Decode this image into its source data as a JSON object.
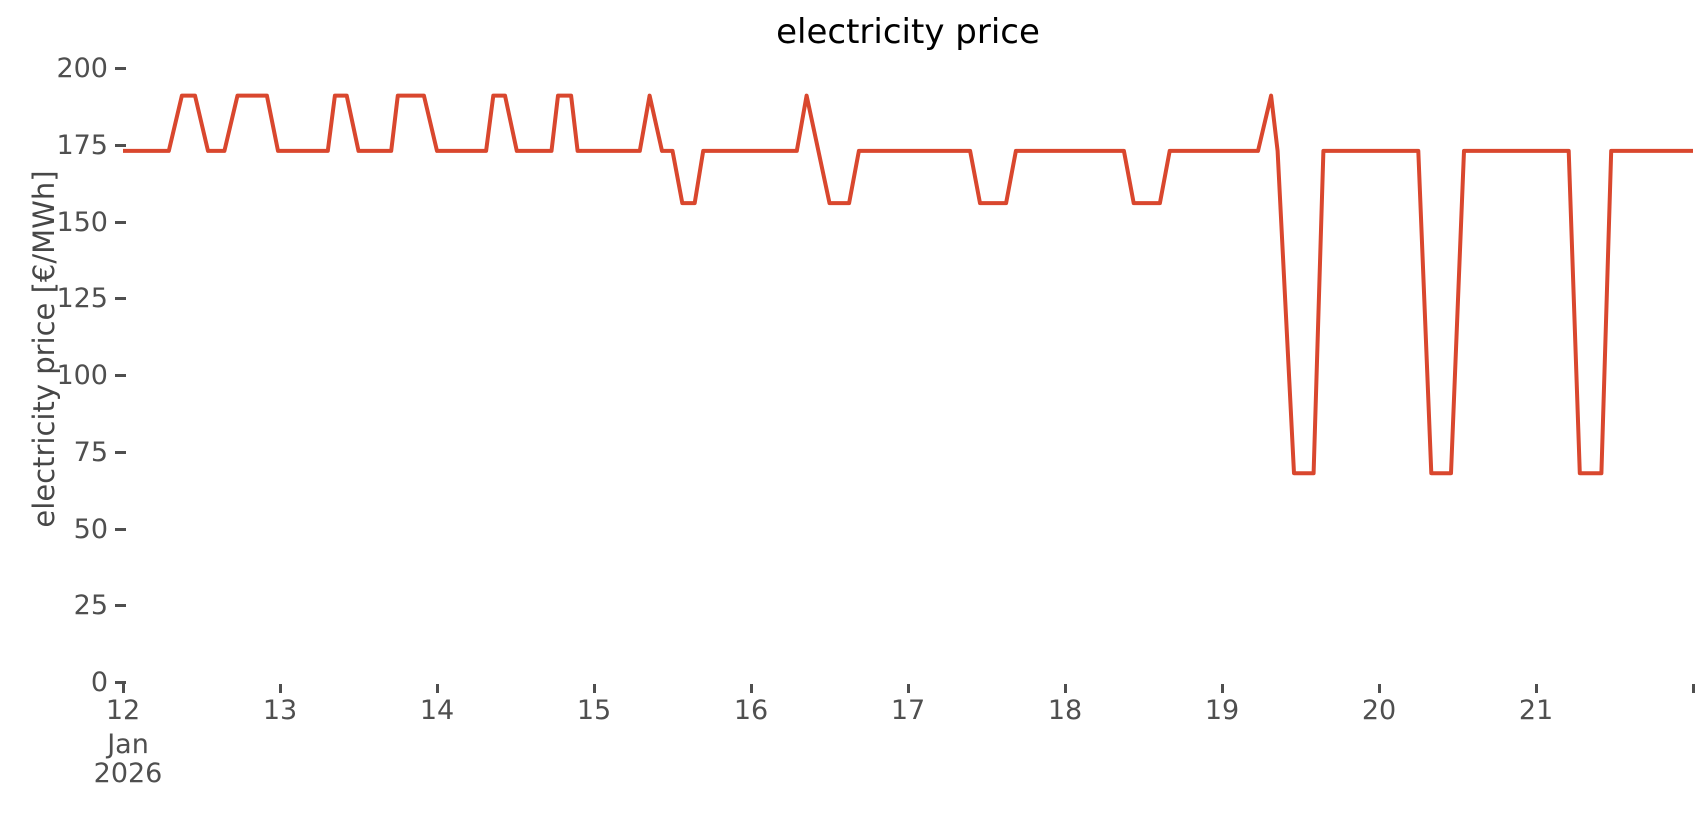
{
  "title": "electricity price",
  "y_axis": {
    "label": "electricity price [€/MWh]",
    "tick_labels": [
      "0",
      "25",
      "50",
      "75",
      "100",
      "125",
      "150",
      "175",
      "200"
    ],
    "tick_values": [
      0,
      25,
      50,
      75,
      100,
      125,
      150,
      175,
      200
    ]
  },
  "x_axis": {
    "ticks": [
      {
        "label": "12",
        "day_offset": 0,
        "sublabels": [
          "Jan",
          "2026"
        ]
      },
      {
        "label": "13",
        "day_offset": 1,
        "sublabels": []
      },
      {
        "label": "14",
        "day_offset": 2,
        "sublabels": []
      },
      {
        "label": "15",
        "day_offset": 3,
        "sublabels": []
      },
      {
        "label": "16",
        "day_offset": 4,
        "sublabels": []
      },
      {
        "label": "17",
        "day_offset": 5,
        "sublabels": []
      },
      {
        "label": "18",
        "day_offset": 6,
        "sublabels": []
      },
      {
        "label": "19",
        "day_offset": 7,
        "sublabels": []
      },
      {
        "label": "20",
        "day_offset": 8,
        "sublabels": []
      },
      {
        "label": "21",
        "day_offset": 9,
        "sublabels": []
      },
      {
        "label": "",
        "day_offset": 10,
        "sublabels": []
      }
    ]
  },
  "colors": {
    "line": "#d9472e",
    "tick_text": "#4f4f4f",
    "title_text": "#000000"
  },
  "chart_data": {
    "type": "line",
    "title": "electricity price",
    "xlabel": "",
    "ylabel": "electricity price [€/MWh]",
    "x_unit": "hours since 2026-01-12 00:00",
    "x_range_hours": [
      0,
      240
    ],
    "x_tick_days": [
      "2026-01-12",
      "2026-01-13",
      "2026-01-14",
      "2026-01-15",
      "2026-01-16",
      "2026-01-17",
      "2026-01-18",
      "2026-01-19",
      "2026-01-20",
      "2026-01-21",
      "2026-01-22"
    ],
    "ylim": [
      0,
      200
    ],
    "grid": false,
    "legend": "none",
    "price_levels": {
      "base": 173,
      "peak": 191,
      "midday_dip": 156,
      "deep_dip": 68
    },
    "series": [
      {
        "name": "electricity price",
        "unit": "€/MWh",
        "points": [
          [
            0,
            173
          ],
          [
            7,
            173
          ],
          [
            9,
            191
          ],
          [
            11,
            191
          ],
          [
            13,
            173
          ],
          [
            15.5,
            173
          ],
          [
            17.5,
            191
          ],
          [
            22,
            191
          ],
          [
            23.7,
            173
          ],
          [
            31.3,
            173
          ],
          [
            32.4,
            191
          ],
          [
            34.2,
            191
          ],
          [
            36,
            173
          ],
          [
            41,
            173
          ],
          [
            42,
            191
          ],
          [
            46,
            191
          ],
          [
            48,
            173
          ],
          [
            55.5,
            173
          ],
          [
            56.6,
            191
          ],
          [
            58.4,
            191
          ],
          [
            60.2,
            173
          ],
          [
            65.5,
            173
          ],
          [
            66.5,
            191
          ],
          [
            68.5,
            191
          ],
          [
            69.5,
            173
          ],
          [
            79,
            173
          ],
          [
            80.5,
            191
          ],
          [
            82.4,
            173
          ],
          [
            84,
            173
          ],
          [
            85.5,
            156
          ],
          [
            87.4,
            156
          ],
          [
            88.7,
            173
          ],
          [
            103,
            173
          ],
          [
            104.5,
            191
          ],
          [
            106.3,
            173
          ],
          [
            108,
            156
          ],
          [
            111,
            156
          ],
          [
            112.5,
            173
          ],
          [
            129.5,
            173
          ],
          [
            131,
            156
          ],
          [
            135,
            156
          ],
          [
            136.5,
            173
          ],
          [
            153,
            173
          ],
          [
            154.5,
            156
          ],
          [
            158.5,
            156
          ],
          [
            160,
            173
          ],
          [
            173.5,
            173
          ],
          [
            175.5,
            191
          ],
          [
            176.5,
            173
          ],
          [
            179,
            68
          ],
          [
            182,
            68
          ],
          [
            183.5,
            173
          ],
          [
            198,
            173
          ],
          [
            200,
            68
          ],
          [
            203,
            68
          ],
          [
            205,
            173
          ],
          [
            221,
            173
          ],
          [
            222.7,
            68
          ],
          [
            226,
            68
          ],
          [
            227.5,
            173
          ],
          [
            240,
            173
          ]
        ]
      }
    ]
  }
}
